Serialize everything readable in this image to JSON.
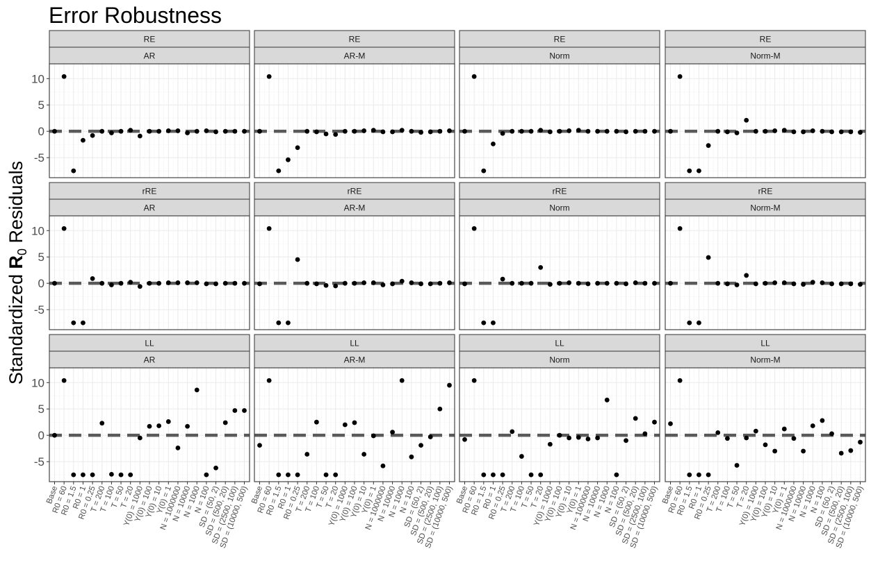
{
  "chart_data": {
    "type": "scatter",
    "title": "Error Robustness",
    "ylabel": {
      "prefix": "Standardized ",
      "bold": "R",
      "sub": "0",
      "suffix": " Residuals"
    },
    "xlabel": "",
    "ylim": [
      -8.8,
      12.8
    ],
    "yticks": [
      -5,
      0,
      5,
      10
    ],
    "grid": true,
    "legend": "none",
    "reference_line": {
      "y": 0,
      "style": "dashed",
      "color": "#5a5a5a"
    },
    "point_color": "#000000",
    "strip_color": "#d9d9d9",
    "categories": [
      "Base",
      "R0 = 60",
      "R0 = 1.5",
      "R0 = 1",
      "R0 = 0.25",
      "T = 200",
      "T = 100",
      "T = 50",
      "T = 20",
      "Y(0) = 1000",
      "Y(0) = 100",
      "Y(0) = 10",
      "Y(0) = 1",
      "N = 1000000",
      "N = 10000",
      "N = 1000",
      "N = 100",
      "SD = (50, 2)",
      "SD = (500, 20)",
      "SD = (2500, 100)",
      "SD = (10000, 500)"
    ],
    "row_strips": [
      "RE",
      "rRE",
      "LL"
    ],
    "col_strips": [
      "AR",
      "AR-M",
      "Norm",
      "Norm-M"
    ],
    "panels": [
      [
        [
          0,
          10.4,
          -7.5,
          -1.7,
          -0.8,
          0,
          -0.3,
          0,
          0.2,
          -0.9,
          0,
          0,
          0.1,
          0.1,
          -0.3,
          0,
          0.1,
          -0.1,
          0,
          0,
          0
        ],
        [
          0,
          10.4,
          -7.5,
          -5.4,
          -3.1,
          0,
          -0.1,
          -0.5,
          -0.6,
          0,
          0,
          0.1,
          0.2,
          -0.1,
          -0.1,
          0.2,
          0,
          -0.2,
          -0.1,
          0,
          0.1
        ],
        [
          0,
          10.4,
          -7.5,
          -2.4,
          -0.4,
          0,
          0,
          0,
          0.2,
          -0.1,
          0,
          0.1,
          0.2,
          0,
          0,
          0,
          0,
          -0.1,
          0,
          0,
          0
        ],
        [
          0,
          10.4,
          -7.5,
          -7.5,
          -2.7,
          0,
          -0.1,
          -0.3,
          2.1,
          0,
          0,
          0.1,
          0.2,
          -0.1,
          -0.1,
          0.1,
          0,
          -0.1,
          -0.1,
          -0.1,
          -0.2
        ]
      ],
      [
        [
          0,
          10.4,
          -7.5,
          -7.5,
          0.9,
          0,
          -0.3,
          0,
          0.2,
          -0.6,
          0,
          0,
          0.1,
          0.1,
          0.1,
          0.1,
          -0.1,
          -0.1,
          0,
          0,
          0
        ],
        [
          -0.1,
          10.4,
          -7.5,
          -7.5,
          4.5,
          0,
          -0.1,
          -0.4,
          -0.5,
          0,
          0,
          0.1,
          0.1,
          -0.3,
          -0.1,
          0.4,
          0.1,
          -0.1,
          -0.1,
          0,
          0.1
        ],
        [
          -0.1,
          10.4,
          -7.5,
          -7.5,
          0.8,
          0,
          0,
          0,
          3,
          -0.2,
          0,
          0.1,
          0,
          -0.1,
          0,
          0,
          0,
          -0.1,
          0.1,
          0,
          0
        ],
        [
          0,
          10.4,
          -7.5,
          -7.5,
          4.9,
          0,
          -0.1,
          -0.3,
          1.5,
          -0.1,
          0,
          0.1,
          0.1,
          -0.1,
          -0.2,
          0.2,
          0.1,
          -0.1,
          -0.1,
          -0.1,
          -0.2
        ]
      ],
      [
        [
          0,
          10.4,
          -7.5,
          -7.5,
          -7.5,
          2.3,
          -7.4,
          -7.5,
          -7.5,
          -0.5,
          1.7,
          1.8,
          2.6,
          -2.4,
          1.7,
          8.6,
          -7.5,
          -6.2,
          2.4,
          4.7,
          4.7
        ],
        [
          -1.9,
          10.4,
          -7.5,
          -7.5,
          -7.5,
          -3.6,
          2.5,
          -7.5,
          -7.5,
          2,
          2.4,
          -3.6,
          -0.1,
          -5.8,
          0.6,
          10.4,
          -4.1,
          -1.9,
          -0.3,
          5,
          9.5
        ],
        [
          -0.8,
          10.4,
          -7.5,
          -7.5,
          -7.5,
          0.7,
          -4,
          -7.5,
          -7.5,
          -1.7,
          0,
          -0.5,
          -0.4,
          -0.7,
          -0.5,
          6.7,
          -7.5,
          -1,
          3.2,
          0.3,
          2.5
        ],
        [
          2.2,
          10.4,
          -7.5,
          -7.5,
          -7.5,
          0.5,
          -0.6,
          -5.7,
          -0.5,
          0.8,
          -1.8,
          -3,
          1.2,
          -0.6,
          -3,
          1.8,
          2.8,
          0.3,
          -3.4,
          -2.9,
          -1.3
        ]
      ]
    ]
  }
}
